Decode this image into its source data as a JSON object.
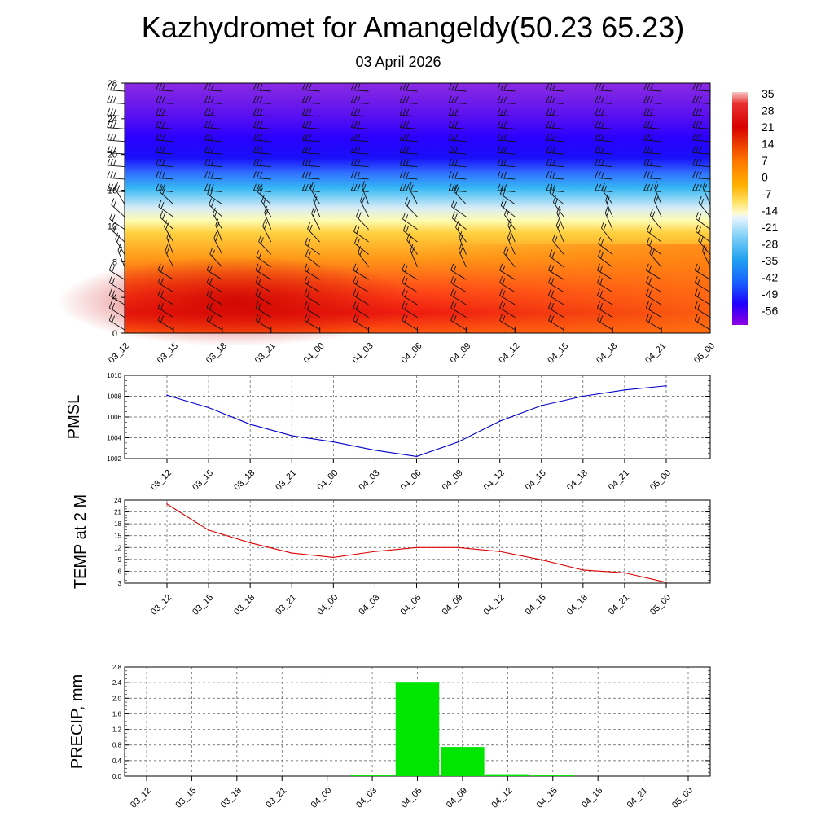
{
  "header": {
    "title": "Kazhydromet for Amangeldy(50.23 65.23)",
    "subtitle": "03 April 2026"
  },
  "time_labels": [
    "03_12",
    "03_15",
    "03_18",
    "03_21",
    "04_00",
    "04_03",
    "04_06",
    "04_09",
    "04_12",
    "04_15",
    "04_18",
    "04_21",
    "05_00"
  ],
  "chart_data": [
    {
      "type": "heatmap",
      "name": "vertical-cross-section",
      "title": "",
      "x": [
        "03_12",
        "03_15",
        "03_18",
        "03_21",
        "04_00",
        "04_03",
        "04_06",
        "04_09",
        "04_12",
        "04_15",
        "04_18",
        "04_21",
        "05_00"
      ],
      "y_ticks": [
        0,
        4,
        8,
        12,
        16,
        20,
        24,
        28
      ],
      "ylim": [
        0,
        28
      ],
      "colorbar": {
        "labels": [
          "35",
          "28",
          "21",
          "14",
          "7",
          "0",
          "-7",
          "-14",
          "-21",
          "-28",
          "-35",
          "-42",
          "-49",
          "-56"
        ],
        "range": [
          -60,
          40
        ]
      },
      "overlay": "wind barbs"
    },
    {
      "type": "line",
      "name": "pmsl",
      "ylabel": "PMSL",
      "x": [
        "03_12",
        "03_15",
        "03_18",
        "03_21",
        "04_00",
        "04_03",
        "04_06",
        "04_09",
        "04_12",
        "04_15",
        "04_18",
        "04_21",
        "05_00"
      ],
      "values": [
        1008.1,
        1006.9,
        1005.3,
        1004.2,
        1003.6,
        1002.8,
        1002.2,
        1003.6,
        1005.6,
        1007.1,
        1008.0,
        1008.6,
        1009.0
      ],
      "ylim": [
        1002,
        1010
      ],
      "y_ticks": [
        1002,
        1004,
        1006,
        1008,
        1010
      ],
      "color": "#0000cc"
    },
    {
      "type": "line",
      "name": "temp2m",
      "ylabel": "TEMP at 2 M",
      "x": [
        "03_12",
        "03_15",
        "03_18",
        "03_21",
        "04_00",
        "04_03",
        "04_06",
        "04_09",
        "04_12",
        "04_15",
        "04_18",
        "04_21",
        "05_00"
      ],
      "values": [
        23.0,
        16.4,
        13.2,
        10.6,
        9.5,
        11.0,
        12.0,
        12.0,
        11.0,
        8.9,
        6.3,
        5.6,
        3.2
      ],
      "ylim": [
        3,
        24
      ],
      "y_ticks": [
        3,
        6,
        9,
        12,
        15,
        18,
        21,
        24
      ],
      "color": "#dd0000"
    },
    {
      "type": "bar",
      "name": "precip",
      "ylabel": "PRECIP, mm",
      "categories": [
        "03_12",
        "03_15",
        "03_18",
        "03_21",
        "04_00",
        "04_03",
        "04_06",
        "04_09",
        "04_12",
        "04_15",
        "04_18",
        "04_21",
        "05_00"
      ],
      "values": [
        0,
        0,
        0,
        0,
        0,
        0.02,
        2.42,
        0.75,
        0.05,
        0.02,
        0,
        0,
        0
      ],
      "ylim": [
        0,
        2.8
      ],
      "y_ticks": [
        "0.0",
        "0.4",
        "0.8",
        "1.2",
        "1.6",
        "2.0",
        "2.4",
        "2.8"
      ],
      "color": "#00e600"
    }
  ]
}
